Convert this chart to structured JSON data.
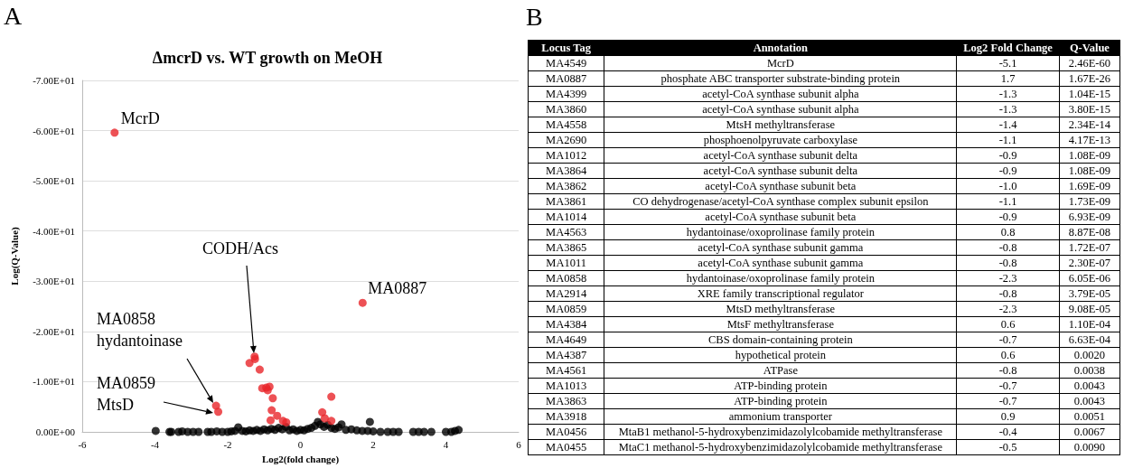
{
  "chart_data": [
    {
      "type": "scatter",
      "title": "ΔmcrD vs. WT growth on MeOH",
      "xlabel": "Log2(fold change)",
      "ylabel": "Log(Q-Value)",
      "xlim": [
        -6,
        6
      ],
      "xticks": [
        -6,
        -4,
        -2,
        0,
        2,
        4,
        6
      ],
      "ylim": [
        0,
        -70
      ],
      "yticks": [
        {
          "value": 0,
          "label": "0.00E+00"
        },
        {
          "value": -10,
          "label": "-1.00E+01"
        },
        {
          "value": -20,
          "label": "-2.00E+01"
        },
        {
          "value": -30,
          "label": "-3.00E+01"
        },
        {
          "value": -40,
          "label": "-4.00E+01"
        },
        {
          "value": -50,
          "label": "-5.00E+01"
        },
        {
          "value": -60,
          "label": "-6.00E+01"
        },
        {
          "value": -70,
          "label": "-7.00E+01"
        }
      ],
      "grid": "y",
      "marker": "circle",
      "series": [
        {
          "color": "#000000",
          "x": [
            -3.98,
            -3.6,
            -3.55,
            -3.35,
            -3.25,
            -3.1,
            -2.95,
            -2.8,
            -2.55,
            -2.45,
            -2.3,
            -2.15,
            -2.0,
            -1.9,
            -1.8,
            -1.71,
            -1.6,
            -1.5,
            -1.4,
            -1.3,
            -1.2,
            -1.1,
            -1.0,
            -0.9,
            -0.8,
            -0.7,
            -0.6,
            -0.5,
            -0.4,
            -0.3,
            -0.2,
            -0.1,
            0,
            0.1,
            0.2,
            0.3,
            0.4,
            0.48,
            0.55,
            0.65,
            0.75,
            0.85,
            0.95,
            1.05,
            1.13,
            1.25,
            1.4,
            1.55,
            1.7,
            1.85,
            1.91,
            2.0,
            2.2,
            2.4,
            2.55,
            2.7,
            3.1,
            3.25,
            3.4,
            3.6,
            4.0,
            4.15,
            4.25,
            4.35
          ],
          "values": [
            -0.2,
            0,
            0,
            0,
            -0.1,
            0,
            0,
            0,
            0,
            0,
            -0.1,
            0,
            0,
            -0.1,
            -0.2,
            -0.9,
            -0.2,
            -0.1,
            -0.3,
            -0.2,
            -0.4,
            -0.2,
            -0.5,
            -0.3,
            -0.6,
            -0.4,
            -0.8,
            -0.5,
            -1.0,
            -0.3,
            -0.5,
            -0.2,
            -0.4,
            -0.3,
            -0.6,
            -0.8,
            -1.2,
            -2.0,
            -1.5,
            -1.0,
            -1.4,
            -0.8,
            -0.6,
            -0.9,
            -1.5,
            -0.4,
            -0.5,
            -0.3,
            -0.2,
            -0.2,
            -2.0,
            -0.1,
            0,
            0,
            0,
            0,
            0,
            0,
            0,
            0,
            0,
            0,
            -0.2,
            -0.4
          ]
        },
        {
          "color": "#e8262a",
          "x": [
            -5.11,
            1.71,
            -1.26,
            -1.4,
            -1.25,
            -1.12,
            -1.05,
            -0.94,
            -0.85,
            -0.9,
            -0.76,
            -0.79,
            -0.64,
            -0.82,
            -0.48,
            -0.39,
            -2.32,
            -2.26,
            0.6,
            0.67,
            0.85,
            0.85
          ],
          "values": [
            -59.6,
            -25.7,
            -15.0,
            -13.7,
            -14.5,
            -12.4,
            -8.7,
            -8.8,
            -9.0,
            -8.3,
            -6.7,
            -4.3,
            -3.2,
            -2.3,
            -2.2,
            -1.9,
            -5.2,
            -4.0,
            -3.9,
            -2.7,
            -7.0,
            -2.2
          ]
        }
      ],
      "annotations": [
        "A",
        {
          "text": "McrD",
          "x": -5.11,
          "y": -59.6
        },
        {
          "text": "MA0887",
          "x": 1.71,
          "y": -25.7
        },
        "CODH/Acs",
        "MA0858\nhydantoinase",
        "MA0859\nMtsD"
      ]
    },
    {
      "type": "other",
      "annotations": [
        "B"
      ],
      "categories": [
        "Locus Tag",
        "Annotation",
        "Log2 Fold Change",
        "Q-Value"
      ],
      "cell_labels": [
        [
          "MA4549",
          "McrD",
          "-5.1",
          "2.46E-60"
        ],
        [
          "MA0887",
          "phosphate ABC transporter substrate-binding protein",
          "1.7",
          "1.67E-26"
        ],
        [
          "MA4399",
          "acetyl-CoA synthase subunit alpha",
          "-1.3",
          "1.04E-15"
        ],
        [
          "MA3860",
          "acetyl-CoA synthase subunit alpha",
          "-1.3",
          "3.80E-15"
        ],
        [
          "MA4558",
          "MtsH methyltransferase",
          "-1.4",
          "2.34E-14"
        ],
        [
          "MA2690",
          "phosphoenolpyruvate carboxylase",
          "-1.1",
          "4.17E-13"
        ],
        [
          "MA1012",
          "acetyl-CoA synthase subunit delta",
          "-0.9",
          "1.08E-09"
        ],
        [
          "MA3864",
          "acetyl-CoA synthase subunit delta",
          "-0.9",
          "1.08E-09"
        ],
        [
          "MA3862",
          "acetyl-CoA synthase subunit beta",
          "-1.0",
          "1.69E-09"
        ],
        [
          "MA3861",
          "CO dehydrogenase/acetyl-CoA synthase complex subunit epsilon",
          "-1.1",
          "1.73E-09"
        ],
        [
          "MA1014",
          "acetyl-CoA synthase subunit beta",
          "-0.9",
          "6.93E-09"
        ],
        [
          "MA4563",
          "hydantoinase/oxoprolinase family protein",
          "0.8",
          "8.87E-08"
        ],
        [
          "MA3865",
          "acetyl-CoA synthase subunit gamma",
          "-0.8",
          "1.72E-07"
        ],
        [
          "MA1011",
          "acetyl-CoA synthase subunit gamma",
          "-0.8",
          "2.30E-07"
        ],
        [
          "MA0858",
          "hydantoinase/oxoprolinase family protein",
          "-2.3",
          "6.05E-06"
        ],
        [
          "MA2914",
          "XRE family transcriptional regulator",
          "-0.8",
          "3.79E-05"
        ],
        [
          "MA0859",
          "MtsD methyltransferase",
          "-2.3",
          "9.08E-05"
        ],
        [
          "MA4384",
          "MtsF methyltransferase",
          "0.6",
          "1.10E-04"
        ],
        [
          "MA4649",
          "CBS domain-containing protein",
          "-0.7",
          "6.63E-04"
        ],
        [
          "MA4387",
          "hypothetical protein",
          "0.6",
          "0.0020"
        ],
        [
          "MA4561",
          "ATPase",
          "-0.8",
          "0.0038"
        ],
        [
          "MA1013",
          "ATP-binding protein",
          "-0.7",
          "0.0043"
        ],
        [
          "MA3863",
          "ATP-binding protein",
          "-0.7",
          "0.0043"
        ],
        [
          "MA3918",
          "ammonium transporter",
          "0.9",
          "0.0051"
        ],
        [
          "MA0456",
          "MtaB1 methanol-5-hydroxybenzimidazolylcobamide methyltransferase",
          "-0.4",
          "0.0067"
        ],
        [
          "MA0455",
          "MtaC1 methanol-5-hydroxybenzimidazolylcobamide methyltransferase",
          "-0.5",
          "0.0090"
        ]
      ]
    }
  ]
}
